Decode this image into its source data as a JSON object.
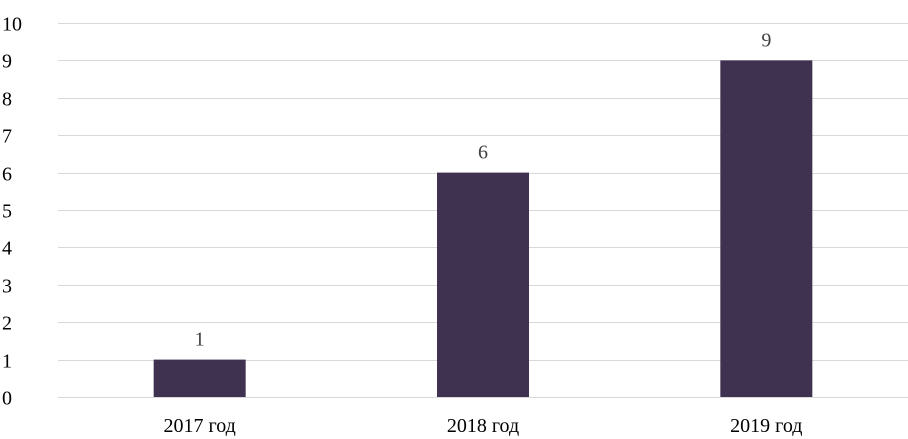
{
  "chart_data": {
    "type": "bar",
    "title": "",
    "xlabel": "",
    "ylabel": "",
    "categories": [
      "2017 год",
      "2018 год",
      "2019 год"
    ],
    "values": [
      1,
      6,
      9
    ],
    "data_labels": [
      "1",
      "6",
      "9"
    ],
    "ylim": [
      0,
      10
    ],
    "yticks": [
      "0",
      "1",
      "2",
      "3",
      "4",
      "5",
      "6",
      "7",
      "8",
      "9",
      "10"
    ],
    "grid": true,
    "legend": "none",
    "bar_color": "#3f3150"
  }
}
